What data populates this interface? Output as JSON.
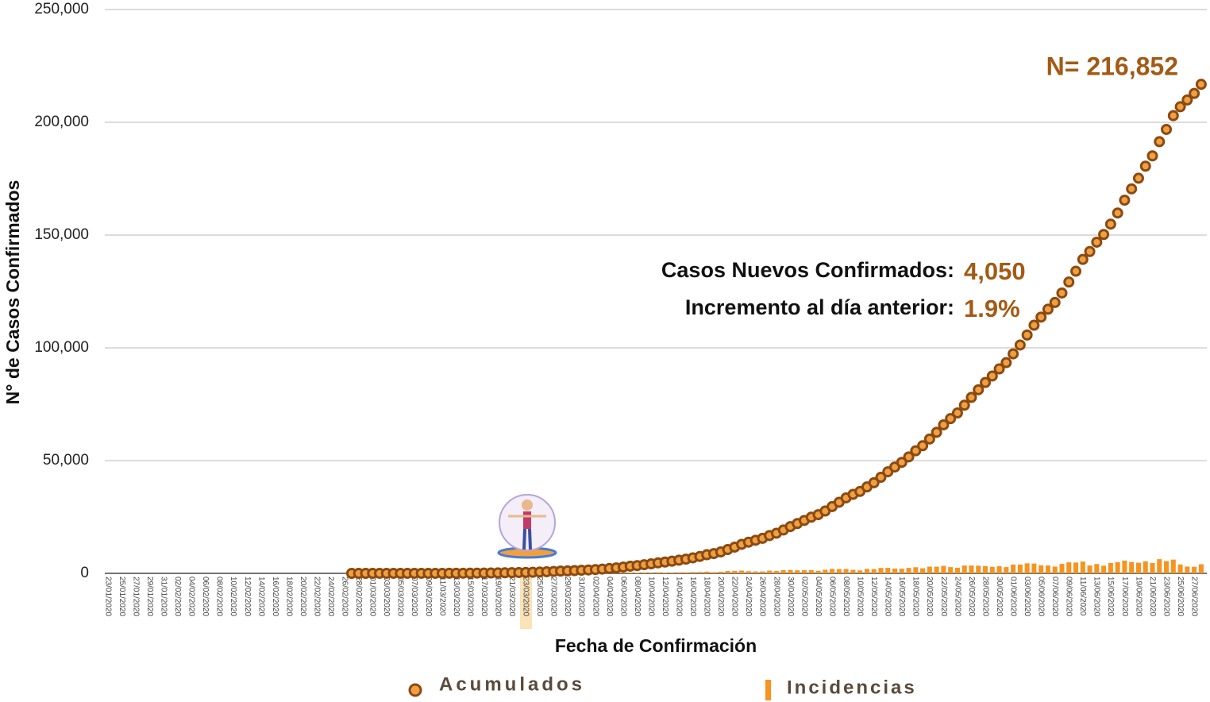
{
  "chart_data": {
    "type": "line_bar",
    "ylabel": "N° de Casos Confirmados",
    "xlabel": "Fecha de Confirmación",
    "annotations": [
      {
        "text": "N= 216,852"
      },
      {
        "text": "Casos Nuevos Confirmados:"
      },
      {
        "text": "4,050"
      },
      {
        "text": "Incremento al día anterior:"
      },
      {
        "text": "1.9%"
      }
    ],
    "highlight_category": "23/03/2020",
    "ylim": [
      0,
      250000
    ],
    "yticks": [
      0,
      {
        "value": 50000,
        "label": "50,000"
      },
      {
        "value": 100000,
        "label": "100,000"
      },
      {
        "value": 150000,
        "label": "150,000"
      },
      {
        "value": 200000,
        "label": "200,000"
      },
      {
        "value": 250000,
        "label": "250,000"
      }
    ],
    "grid": true,
    "legend": "bottom",
    "categories": [
      "23/01/2020",
      null,
      "25/01/2020",
      null,
      "27/01/2020",
      null,
      "29/01/2020",
      null,
      "31/01/2020",
      null,
      "02/02/2020",
      null,
      "04/02/2020",
      null,
      "06/02/2020",
      null,
      "08/02/2020",
      null,
      "10/02/2020",
      null,
      "12/02/2020",
      null,
      "14/02/2020",
      null,
      "16/02/2020",
      null,
      "18/02/2020",
      null,
      "20/02/2020",
      null,
      "22/02/2020",
      null,
      "24/02/2020",
      null,
      "26/02/2020",
      null,
      "28/02/2020",
      null,
      "01/03/2020",
      null,
      "03/03/2020",
      null,
      "05/03/2020",
      null,
      "07/03/2020",
      null,
      "09/03/2020",
      null,
      "11/03/2020",
      null,
      "13/03/2020",
      null,
      "15/03/2020",
      null,
      "17/03/2020",
      null,
      "19/03/2020",
      null,
      "21/03/2020",
      null,
      "23/03/2020",
      null,
      "25/03/2020",
      null,
      "27/03/2020",
      null,
      "29/03/2020",
      null,
      "31/03/2020",
      null,
      "02/04/2020",
      null,
      "04/04/2020",
      null,
      "06/04/2020",
      null,
      "08/04/2020",
      null,
      "10/04/2020",
      null,
      "12/04/2020",
      null,
      "14/04/2020",
      null,
      "16/04/2020",
      null,
      "18/04/2020",
      null,
      "20/04/2020",
      null,
      "22/04/2020",
      null,
      "24/04/2020",
      null,
      "26/04/2020",
      null,
      "28/04/2020",
      null,
      "30/04/2020",
      null,
      "02/05/2020",
      null,
      "04/05/2020",
      null,
      "06/05/2020",
      null,
      "08/05/2020",
      null,
      "10/05/2020",
      null,
      "12/05/2020",
      null,
      "14/05/2020",
      null,
      "16/05/2020",
      null,
      "18/05/2020",
      null,
      "20/05/2020",
      null,
      "22/05/2020",
      null,
      "24/05/2020",
      null,
      "26/05/2020",
      null,
      "28/05/2020",
      null,
      "30/05/2020",
      null,
      "01/06/2020",
      null,
      "03/06/2020",
      null,
      "05/06/2020",
      null,
      "07/06/2020",
      null,
      "09/06/2020",
      null,
      "11/06/2020",
      null,
      "13/06/2020",
      null,
      "15/06/2020",
      null,
      "17/06/2020",
      null,
      "19/06/2020",
      null,
      "21/06/2020",
      null,
      "23/06/2020",
      null,
      "25/06/2020",
      null,
      "27/06/2020",
      null
    ],
    "series": [
      {
        "name": "Acumulados",
        "color": "#8b4a12",
        "values": [
          null,
          null,
          null,
          null,
          null,
          null,
          null,
          null,
          null,
          null,
          null,
          null,
          null,
          null,
          null,
          null,
          null,
          null,
          null,
          null,
          null,
          null,
          null,
          null,
          null,
          null,
          null,
          null,
          null,
          null,
          null,
          null,
          null,
          null,
          null,
          1,
          1,
          2,
          4,
          5,
          5,
          6,
          7,
          7,
          8,
          11,
          12,
          15,
          19,
          26,
          36,
          53,
          82,
          93,
          118,
          164,
          203,
          251,
          316,
          367,
          405,
          475,
          585,
          717,
          848,
          993,
          1094,
          1215,
          1378,
          1510,
          1688,
          1890,
          2143,
          2439,
          2785,
          3181,
          3441,
          3844,
          4219,
          4661,
          5014,
          5399,
          5847,
          6297,
          6875,
          7497,
          8261,
          8772,
          9501,
          10544,
          11633,
          12872,
          13842,
          14677,
          15529,
          16752,
          17799,
          19224,
          20739,
          22088,
          23471,
          24905,
          26025,
          27634,
          29616,
          31522,
          33460,
          35022,
          36327,
          38324,
          40186,
          42595,
          45032,
          47144,
          49219,
          51633,
          54346,
          56594,
          59567,
          62527,
          65856,
          68620,
          71105,
          74560,
          78023,
          81400,
          84627,
          87512,
          90664,
          93435,
          97326,
          101238,
          105680,
          110026,
          113619,
          117103,
          120102,
          124301,
          129184,
          133974,
          139196,
          142690,
          146837,
          150264,
          154863,
          159793,
          165455,
          170485,
          175202,
          180545,
          185122,
          191410,
          196847,
          202951,
          206900,
          209900,
          212802,
          216852
        ]
      },
      {
        "name": "Incidencias",
        "color": "#f7931e",
        "values": [
          null,
          null,
          null,
          null,
          null,
          null,
          null,
          null,
          null,
          null,
          null,
          null,
          null,
          null,
          null,
          null,
          null,
          null,
          null,
          null,
          null,
          null,
          null,
          null,
          null,
          null,
          null,
          null,
          null,
          null,
          null,
          null,
          null,
          null,
          null,
          1,
          0,
          1,
          2,
          1,
          0,
          1,
          1,
          0,
          1,
          3,
          1,
          3,
          4,
          7,
          10,
          17,
          29,
          11,
          25,
          46,
          39,
          48,
          65,
          51,
          38,
          70,
          110,
          132,
          131,
          145,
          101,
          121,
          163,
          132,
          178,
          202,
          253,
          296,
          346,
          396,
          260,
          403,
          375,
          442,
          353,
          385,
          448,
          450,
          578,
          622,
          764,
          511,
          729,
          1043,
          1089,
          1239,
          970,
          835,
          852,
          1223,
          1047,
          1425,
          1515,
          1349,
          1383,
          1434,
          1120,
          1609,
          1982,
          1906,
          1938,
          1562,
          1305,
          1997,
          1862,
          2409,
          2437,
          2112,
          2075,
          2414,
          2713,
          2248,
          2973,
          2960,
          3329,
          2764,
          2485,
          3455,
          3463,
          3377,
          3227,
          2885,
          3152,
          2771,
          3891,
          3912,
          4442,
          4346,
          3593,
          3484,
          2999,
          4199,
          4883,
          4790,
          5222,
          3494,
          4147,
          3427,
          4599,
          4930,
          5662,
          5030,
          4717,
          5343,
          4577,
          6288,
          5437,
          6104,
          3949,
          3000,
          2902,
          4050
        ]
      }
    ]
  }
}
